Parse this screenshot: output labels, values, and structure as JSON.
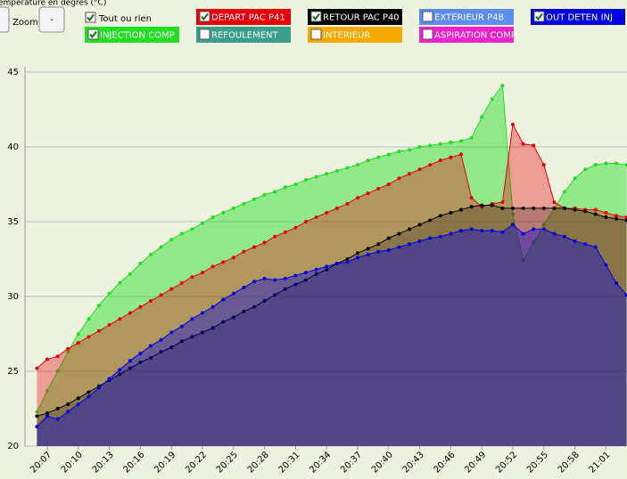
{
  "controls": {
    "zoom_label": "Zoom",
    "zoom_out": "-",
    "toggle_all": {
      "label": "Tout ou rien",
      "checked": true
    }
  },
  "chart_data": {
    "type": "area",
    "title": "Température en degrés (°C)",
    "categories": [
      null,
      "20:07",
      null,
      null,
      "20:10",
      null,
      null,
      "20:13",
      null,
      null,
      "20:16",
      null,
      null,
      "20:19",
      null,
      null,
      "20:22",
      null,
      null,
      "20:25",
      null,
      null,
      "20:28",
      null,
      null,
      "20:31",
      null,
      null,
      "20:34",
      null,
      null,
      "20:37",
      null,
      null,
      "20:40",
      null,
      null,
      "20:43",
      null,
      null,
      "20:46",
      null,
      null,
      "20:49",
      null,
      null,
      "20:52",
      null,
      null,
      "20:55",
      null,
      null,
      "20:58",
      null,
      null,
      "21:01",
      null,
      null
    ],
    "ylim": [
      20,
      45
    ],
    "yticks": [
      20,
      25,
      30,
      35,
      40,
      45
    ],
    "grid": true,
    "series": [
      {
        "name": "DEPART PAC P41",
        "color": "#e8000a",
        "checked": true,
        "values": [
          25.2,
          25.8,
          26.0,
          26.5,
          26.9,
          27.3,
          27.7,
          28.1,
          28.5,
          28.9,
          29.3,
          29.7,
          30.1,
          30.5,
          30.9,
          31.3,
          31.6,
          32.0,
          32.3,
          32.6,
          33.0,
          33.3,
          33.6,
          34.0,
          34.3,
          34.6,
          35.0,
          35.3,
          35.6,
          35.9,
          36.2,
          36.6,
          36.9,
          37.2,
          37.5,
          37.9,
          38.2,
          38.5,
          38.8,
          39.1,
          39.3,
          39.5,
          36.6,
          36.0,
          36.2,
          36.3,
          41.5,
          40.2,
          40.1,
          38.8,
          36.3,
          35.9,
          35.9,
          35.8,
          35.8,
          35.6,
          35.4,
          35.3
        ]
      },
      {
        "name": "RETOUR PAC P40",
        "color": "#000000",
        "checked": true,
        "values": [
          22.0,
          22.2,
          22.5,
          22.8,
          23.2,
          23.6,
          24.0,
          24.4,
          24.8,
          25.2,
          25.6,
          25.9,
          26.3,
          26.6,
          27.0,
          27.3,
          27.6,
          27.9,
          28.3,
          28.6,
          29.0,
          29.3,
          29.7,
          30.1,
          30.5,
          30.8,
          31.1,
          31.5,
          31.8,
          32.2,
          32.5,
          32.9,
          33.2,
          33.5,
          33.9,
          34.2,
          34.5,
          34.8,
          35.1,
          35.4,
          35.6,
          35.8,
          36.0,
          36.1,
          36.1,
          35.9,
          35.9,
          35.9,
          35.9,
          35.9,
          35.9,
          35.9,
          35.8,
          35.7,
          35.5,
          35.3,
          35.2,
          35.1
        ]
      },
      {
        "name": "EXTERIEUR P48",
        "color": "#5b8cf0",
        "checked": false
      },
      {
        "name": "OUT DETEN INJ",
        "color": "#0000e0",
        "checked": true,
        "values": [
          21.3,
          22.0,
          21.8,
          22.3,
          22.8,
          23.3,
          23.9,
          24.5,
          25.1,
          25.7,
          26.2,
          26.7,
          27.1,
          27.6,
          28.0,
          28.5,
          28.9,
          29.3,
          29.8,
          30.2,
          30.6,
          31.0,
          31.2,
          31.1,
          31.2,
          31.4,
          31.6,
          31.8,
          32.0,
          32.2,
          32.3,
          32.6,
          32.8,
          33.0,
          33.1,
          33.3,
          33.5,
          33.7,
          33.9,
          34.0,
          34.2,
          34.4,
          34.5,
          34.4,
          34.4,
          34.3,
          34.8,
          34.2,
          34.5,
          34.5,
          34.2,
          34.0,
          33.7,
          33.5,
          33.3,
          32.1,
          30.9,
          30.1
        ]
      },
      {
        "name": "INJECTION COMP",
        "color": "#22dd22",
        "checked": true,
        "values": [
          22.3,
          23.7,
          25.0,
          26.3,
          27.5,
          28.5,
          29.4,
          30.2,
          30.9,
          31.5,
          32.2,
          32.8,
          33.3,
          33.8,
          34.2,
          34.5,
          34.9,
          35.3,
          35.6,
          35.9,
          36.2,
          36.5,
          36.8,
          37.0,
          37.3,
          37.5,
          37.8,
          38.0,
          38.2,
          38.4,
          38.6,
          38.8,
          39.1,
          39.3,
          39.5,
          39.7,
          39.8,
          40.0,
          40.1,
          40.2,
          40.3,
          40.4,
          40.6,
          42.0,
          43.2,
          44.1,
          35.5,
          32.4,
          33.6,
          34.8,
          35.9,
          37.0,
          37.9,
          38.5,
          38.8,
          38.9,
          38.9,
          38.8
        ]
      },
      {
        "name": "REFOULEMENT",
        "color": "#3a9e8e",
        "checked": false
      },
      {
        "name": "INTERIEUR",
        "color": "#f5a800",
        "checked": false
      },
      {
        "name": "ASPIRATION COMP",
        "color": "#ee22cc",
        "checked": false
      }
    ]
  }
}
